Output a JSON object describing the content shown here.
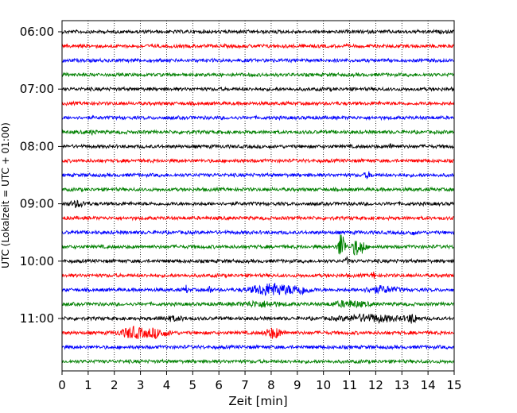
{
  "chart_data": {
    "type": "line",
    "title": "",
    "xlabel": "Zeit  [min]",
    "ylabel": "UTC (Lokalzeit = UTC + 01:00)",
    "xlim": [
      0,
      15
    ],
    "x_ticks": [
      0,
      1,
      2,
      3,
      4,
      5,
      6,
      7,
      8,
      9,
      10,
      11,
      12,
      13,
      14,
      15
    ],
    "y_tick_labels": [
      "06:00",
      "07:00",
      "08:00",
      "09:00",
      "10:00",
      "11:00"
    ],
    "grid": "vertical-dotted",
    "color_cycle": [
      "#000000",
      "#ff0000",
      "#0000ff",
      "#008000"
    ],
    "traces": [
      {
        "start": "06:00",
        "events": []
      },
      {
        "start": "06:15",
        "events": []
      },
      {
        "start": "06:30",
        "events": []
      },
      {
        "start": "06:45",
        "events": []
      },
      {
        "start": "07:00",
        "events": []
      },
      {
        "start": "07:15",
        "events": []
      },
      {
        "start": "07:30",
        "events": []
      },
      {
        "start": "07:45",
        "events": [
          {
            "t": 1.2,
            "amp": 0.35,
            "dur": 0.2
          }
        ]
      },
      {
        "start": "08:00",
        "events": [
          {
            "t": 12.6,
            "amp": 0.3,
            "dur": 0.2
          }
        ]
      },
      {
        "start": "08:15",
        "events": []
      },
      {
        "start": "08:30",
        "events": [
          {
            "t": 11.7,
            "amp": 0.45,
            "dur": 0.25
          }
        ]
      },
      {
        "start": "08:45",
        "events": []
      },
      {
        "start": "09:00",
        "events": [
          {
            "t": 0.6,
            "amp": 0.45,
            "dur": 0.6
          }
        ]
      },
      {
        "start": "09:15",
        "events": []
      },
      {
        "start": "09:30",
        "events": [
          {
            "t": 13.4,
            "amp": 0.35,
            "dur": 0.2
          }
        ]
      },
      {
        "start": "09:45",
        "events": [
          {
            "t": 10.7,
            "amp": 2.7,
            "dur": 0.25
          },
          {
            "t": 11.25,
            "amp": 1.6,
            "dur": 0.25
          },
          {
            "t": 11.5,
            "amp": 1.1,
            "dur": 0.2
          }
        ]
      },
      {
        "start": "10:00",
        "events": [
          {
            "t": 10.9,
            "amp": 0.5,
            "dur": 0.15
          }
        ]
      },
      {
        "start": "10:15",
        "events": [
          {
            "t": 11.9,
            "amp": 0.9,
            "dur": 0.1
          }
        ]
      },
      {
        "start": "10:30",
        "events": [
          {
            "t": 4.75,
            "amp": 0.7,
            "dur": 0.1
          },
          {
            "t": 5.65,
            "amp": 0.8,
            "dur": 0.1
          },
          {
            "t": 8.0,
            "amp": 1.0,
            "dur": 1.4
          },
          {
            "t": 9.1,
            "amp": 0.6,
            "dur": 0.8
          },
          {
            "t": 12.2,
            "amp": 0.5,
            "dur": 1.2
          }
        ]
      },
      {
        "start": "10:45",
        "events": [
          {
            "t": 7.6,
            "amp": 0.4,
            "dur": 1.5
          },
          {
            "t": 11.0,
            "amp": 0.45,
            "dur": 1.3
          }
        ]
      },
      {
        "start": "11:00",
        "events": [
          {
            "t": 4.2,
            "amp": 0.3,
            "dur": 1.0
          },
          {
            "t": 11.8,
            "amp": 0.55,
            "dur": 2.2
          },
          {
            "t": 13.4,
            "amp": 0.65,
            "dur": 0.4
          }
        ]
      },
      {
        "start": "11:15",
        "events": [
          {
            "t": 2.7,
            "amp": 0.9,
            "dur": 0.9
          },
          {
            "t": 3.6,
            "amp": 0.7,
            "dur": 0.9
          },
          {
            "t": 8.1,
            "amp": 0.85,
            "dur": 0.6
          }
        ]
      },
      {
        "start": "11:30",
        "events": []
      },
      {
        "start": "11:45",
        "events": []
      }
    ]
  }
}
